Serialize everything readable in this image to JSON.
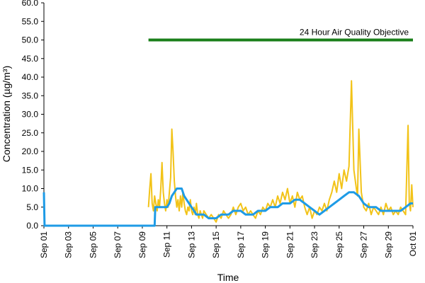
{
  "chart_data": {
    "type": "line",
    "title": "",
    "xlabel": "Time",
    "ylabel": "Concentration (µg/m³)",
    "ylim": [
      0,
      60
    ],
    "xlim_day": [
      1,
      31
    ],
    "y_ticks": [
      {
        "value": 0,
        "label": "0.0"
      },
      {
        "value": 5,
        "label": "5.0"
      },
      {
        "value": 10,
        "label": "10.0"
      },
      {
        "value": 15,
        "label": "15.0"
      },
      {
        "value": 20,
        "label": "20.0"
      },
      {
        "value": 25,
        "label": "25.0"
      },
      {
        "value": 30,
        "label": "30.0"
      },
      {
        "value": 35,
        "label": "35.0"
      },
      {
        "value": 40,
        "label": "40.0"
      },
      {
        "value": 45,
        "label": "45.0"
      },
      {
        "value": 50,
        "label": "50.0"
      },
      {
        "value": 55,
        "label": "55.0"
      },
      {
        "value": 60,
        "label": "60.0"
      }
    ],
    "x_ticks": [
      {
        "day": 1,
        "label": "Sep 01"
      },
      {
        "day": 3,
        "label": "Sep 03"
      },
      {
        "day": 5,
        "label": "Sep 05"
      },
      {
        "day": 7,
        "label": "Sep 07"
      },
      {
        "day": 9,
        "label": "Sep 09"
      },
      {
        "day": 11,
        "label": "Sep 11"
      },
      {
        "day": 13,
        "label": "Sep 13"
      },
      {
        "day": 15,
        "label": "Sep 15"
      },
      {
        "day": 17,
        "label": "Sep 17"
      },
      {
        "day": 19,
        "label": "Sep 19"
      },
      {
        "day": 21,
        "label": "Sep 21"
      },
      {
        "day": 23,
        "label": "Sep 23"
      },
      {
        "day": 25,
        "label": "Sep 25"
      },
      {
        "day": 27,
        "label": "Sep 27"
      },
      {
        "day": 29,
        "label": "Sep 29"
      },
      {
        "day": 31,
        "label": "Oct 01"
      }
    ],
    "objective": {
      "label": "24 Hour Air Quality Objective",
      "value": 50,
      "from_day": 9.5,
      "to_day": 31,
      "color": "#1a7f1a"
    },
    "series": [
      {
        "color": "#f2c318",
        "points": [
          [
            9.5,
            5
          ],
          [
            9.6,
            10
          ],
          [
            9.7,
            14
          ],
          [
            9.8,
            6
          ],
          [
            9.9,
            4
          ],
          [
            10.0,
            8
          ],
          [
            10.1,
            6
          ],
          [
            10.2,
            4
          ],
          [
            10.3,
            7
          ],
          [
            10.4,
            5
          ],
          [
            10.5,
            10
          ],
          [
            10.6,
            17
          ],
          [
            10.7,
            9
          ],
          [
            10.8,
            6
          ],
          [
            10.9,
            4
          ],
          [
            11.0,
            7
          ],
          [
            11.1,
            5
          ],
          [
            11.2,
            9
          ],
          [
            11.3,
            13
          ],
          [
            11.4,
            26
          ],
          [
            11.5,
            20
          ],
          [
            11.6,
            12
          ],
          [
            11.7,
            8
          ],
          [
            11.8,
            5
          ],
          [
            11.9,
            7
          ],
          [
            12.0,
            4
          ],
          [
            12.1,
            8
          ],
          [
            12.2,
            5
          ],
          [
            12.3,
            9
          ],
          [
            12.4,
            6
          ],
          [
            12.5,
            4
          ],
          [
            12.6,
            3
          ],
          [
            12.7,
            5
          ],
          [
            12.8,
            4
          ],
          [
            12.9,
            7
          ],
          [
            13.0,
            4
          ],
          [
            13.1,
            3
          ],
          [
            13.2,
            5
          ],
          [
            13.3,
            3
          ],
          [
            13.4,
            6
          ],
          [
            13.5,
            3
          ],
          [
            13.6,
            2
          ],
          [
            13.7,
            4
          ],
          [
            13.8,
            3
          ],
          [
            13.9,
            2
          ],
          [
            14.0,
            4
          ],
          [
            14.2,
            3
          ],
          [
            14.4,
            2
          ],
          [
            14.6,
            3
          ],
          [
            14.8,
            2
          ],
          [
            15.0,
            1
          ],
          [
            15.2,
            3
          ],
          [
            15.4,
            2
          ],
          [
            15.6,
            4
          ],
          [
            15.8,
            3
          ],
          [
            16.0,
            2
          ],
          [
            16.2,
            3
          ],
          [
            16.4,
            5
          ],
          [
            16.6,
            3
          ],
          [
            16.8,
            5
          ],
          [
            17.0,
            6
          ],
          [
            17.2,
            4
          ],
          [
            17.4,
            5
          ],
          [
            17.6,
            3
          ],
          [
            17.8,
            4
          ],
          [
            18.0,
            3
          ],
          [
            18.2,
            2
          ],
          [
            18.4,
            4
          ],
          [
            18.6,
            3
          ],
          [
            18.8,
            5
          ],
          [
            19.0,
            4
          ],
          [
            19.2,
            6
          ],
          [
            19.4,
            5
          ],
          [
            19.6,
            7
          ],
          [
            19.8,
            5
          ],
          [
            20.0,
            8
          ],
          [
            20.2,
            6
          ],
          [
            20.4,
            9
          ],
          [
            20.6,
            7
          ],
          [
            20.8,
            10
          ],
          [
            21.0,
            6
          ],
          [
            21.2,
            8
          ],
          [
            21.4,
            5
          ],
          [
            21.6,
            9
          ],
          [
            21.8,
            7
          ],
          [
            22.0,
            8
          ],
          [
            22.2,
            5
          ],
          [
            22.4,
            3
          ],
          [
            22.6,
            5
          ],
          [
            22.8,
            2
          ],
          [
            23.0,
            4
          ],
          [
            23.2,
            3
          ],
          [
            23.4,
            5
          ],
          [
            23.6,
            4
          ],
          [
            23.8,
            6
          ],
          [
            24.0,
            4
          ],
          [
            24.2,
            7
          ],
          [
            24.4,
            9
          ],
          [
            24.6,
            12
          ],
          [
            24.8,
            9
          ],
          [
            25.0,
            14
          ],
          [
            25.2,
            10
          ],
          [
            25.4,
            15
          ],
          [
            25.6,
            12
          ],
          [
            25.8,
            16
          ],
          [
            26.0,
            39
          ],
          [
            26.2,
            15
          ],
          [
            26.4,
            10
          ],
          [
            26.5,
            8
          ],
          [
            26.6,
            26
          ],
          [
            26.8,
            9
          ],
          [
            27.0,
            5
          ],
          [
            27.2,
            4
          ],
          [
            27.4,
            6
          ],
          [
            27.6,
            3
          ],
          [
            27.8,
            5
          ],
          [
            28.0,
            4
          ],
          [
            28.2,
            3
          ],
          [
            28.4,
            5
          ],
          [
            28.6,
            3
          ],
          [
            28.8,
            6
          ],
          [
            29.0,
            4
          ],
          [
            29.2,
            5
          ],
          [
            29.4,
            3
          ],
          [
            29.6,
            4
          ],
          [
            29.8,
            3
          ],
          [
            30.0,
            5
          ],
          [
            30.2,
            4
          ],
          [
            30.4,
            3
          ],
          [
            30.6,
            27
          ],
          [
            30.7,
            6
          ],
          [
            30.8,
            4
          ],
          [
            30.9,
            11
          ],
          [
            31.0,
            5
          ]
        ]
      },
      {
        "color": "#1e9be6",
        "points": [
          [
            1.0,
            9
          ],
          [
            1.05,
            0
          ],
          [
            10.0,
            0
          ],
          [
            10.05,
            5
          ],
          [
            10.5,
            5
          ],
          [
            11.0,
            5
          ],
          [
            11.2,
            6
          ],
          [
            11.4,
            8
          ],
          [
            11.6,
            9
          ],
          [
            11.8,
            10
          ],
          [
            12.2,
            10
          ],
          [
            12.4,
            8
          ],
          [
            12.6,
            7
          ],
          [
            12.8,
            6
          ],
          [
            13.0,
            5
          ],
          [
            13.2,
            4
          ],
          [
            13.4,
            3
          ],
          [
            14.0,
            3
          ],
          [
            14.4,
            2
          ],
          [
            15.0,
            2
          ],
          [
            15.4,
            3
          ],
          [
            16.0,
            3
          ],
          [
            16.4,
            4
          ],
          [
            17.0,
            4
          ],
          [
            17.4,
            3
          ],
          [
            18.0,
            3
          ],
          [
            18.4,
            4
          ],
          [
            19.0,
            4
          ],
          [
            19.4,
            5
          ],
          [
            20.0,
            5
          ],
          [
            20.4,
            6
          ],
          [
            21.0,
            6
          ],
          [
            21.4,
            7
          ],
          [
            21.8,
            7
          ],
          [
            22.2,
            6
          ],
          [
            22.6,
            5
          ],
          [
            23.0,
            4
          ],
          [
            23.4,
            3
          ],
          [
            23.8,
            4
          ],
          [
            24.2,
            5
          ],
          [
            24.6,
            6
          ],
          [
            25.0,
            7
          ],
          [
            25.4,
            8
          ],
          [
            25.8,
            9
          ],
          [
            26.2,
            9
          ],
          [
            26.6,
            8
          ],
          [
            27.0,
            6
          ],
          [
            27.4,
            5
          ],
          [
            28.0,
            5
          ],
          [
            28.4,
            4
          ],
          [
            29.0,
            4
          ],
          [
            29.6,
            4
          ],
          [
            30.0,
            4
          ],
          [
            30.4,
            5
          ],
          [
            30.8,
            6
          ],
          [
            31.0,
            6
          ]
        ]
      }
    ]
  }
}
